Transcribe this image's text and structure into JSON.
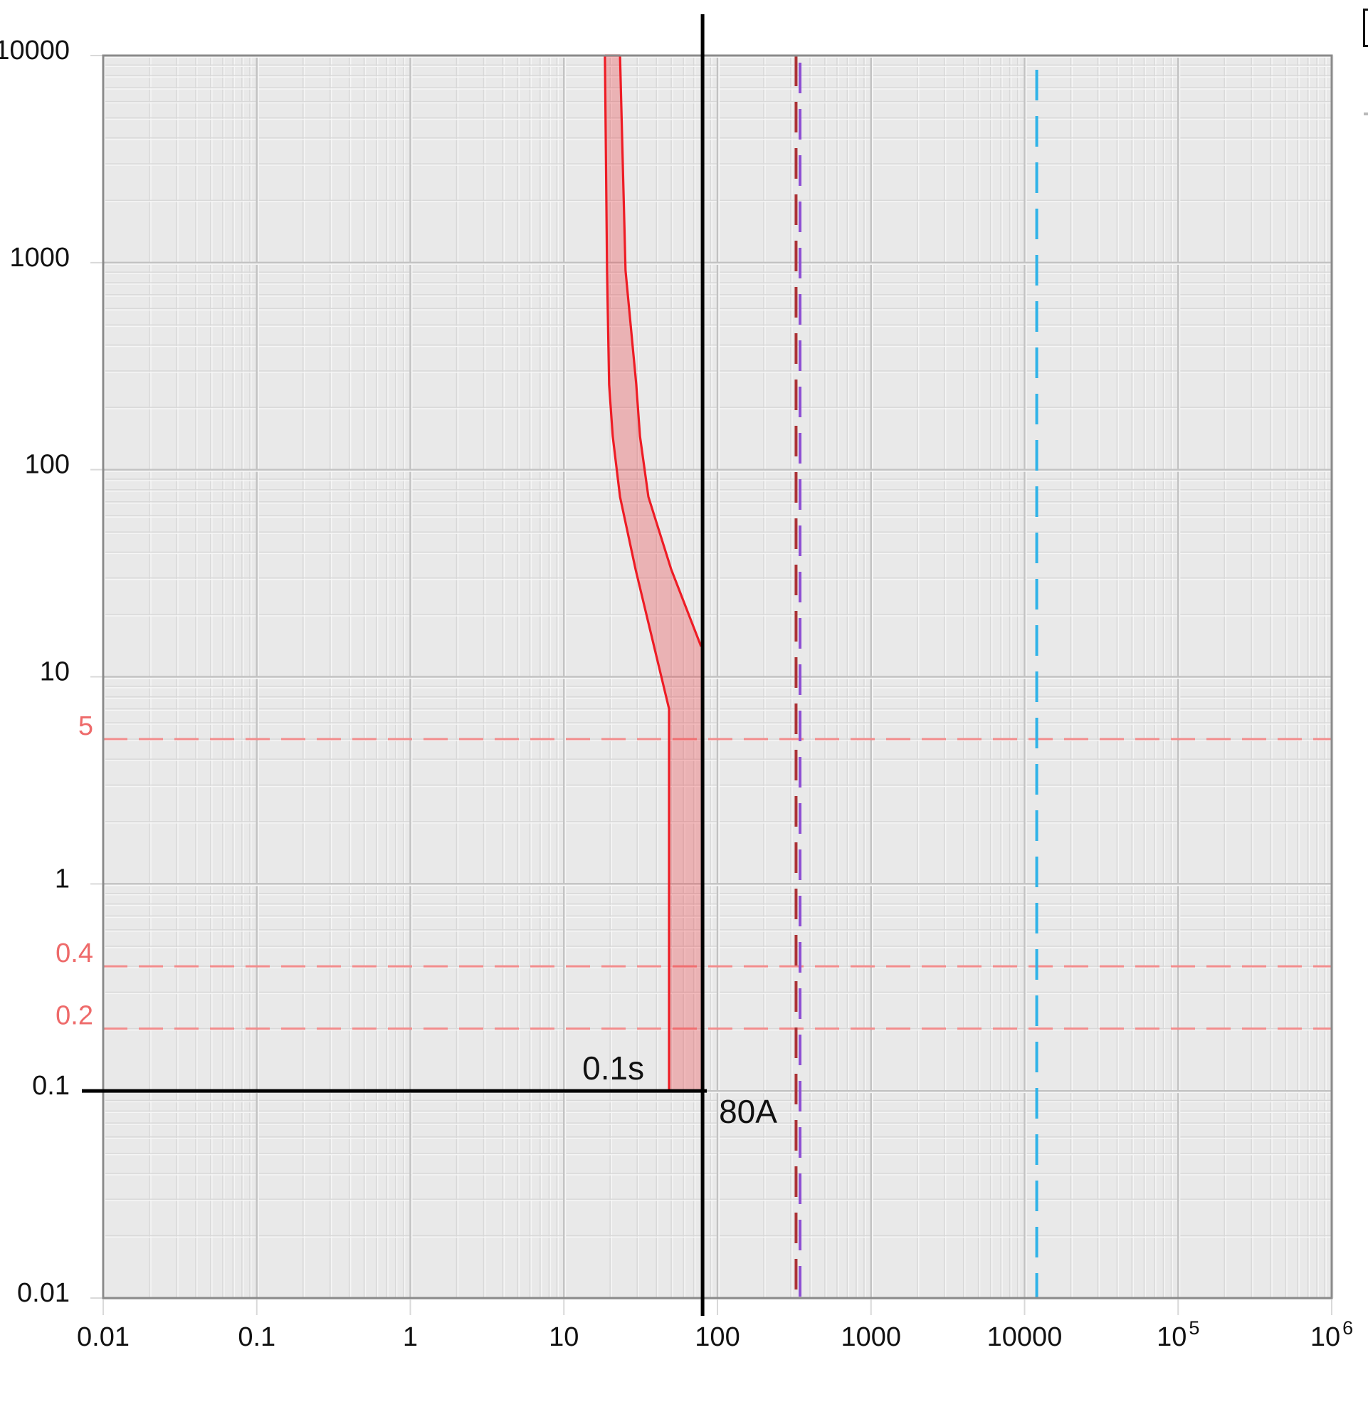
{
  "annotations": {
    "time_label": "0.1s",
    "current_label": "80A"
  },
  "legend_fragment": {
    "present": true
  },
  "chart_data": {
    "type": "area",
    "x_axis": {
      "scale": "log",
      "min": 0.01,
      "max": 1000000,
      "ticks": [
        {
          "v": 0.01,
          "label": "0.01"
        },
        {
          "v": 0.1,
          "label": "0.1"
        },
        {
          "v": 1,
          "label": "1"
        },
        {
          "v": 10,
          "label": "10"
        },
        {
          "v": 100,
          "label": "100"
        },
        {
          "v": 1000,
          "label": "1000"
        },
        {
          "v": 10000,
          "label": "10000"
        },
        {
          "v": 100000,
          "label": "10",
          "sup": "5"
        },
        {
          "v": 1000000,
          "label": "10",
          "sup": "6"
        }
      ]
    },
    "y_axis": {
      "scale": "log",
      "min": 0.01,
      "max": 10000,
      "ticks": [
        {
          "v": 10000,
          "label": "10000"
        },
        {
          "v": 1000,
          "label": "1000"
        },
        {
          "v": 100,
          "label": "100"
        },
        {
          "v": 10,
          "label": "10"
        },
        {
          "v": 1,
          "label": "1"
        },
        {
          "v": 0.1,
          "label": "0.1"
        },
        {
          "v": 0.01,
          "label": "0.01"
        }
      ]
    },
    "red_time_lines": {
      "values": [
        5,
        0.4,
        0.2
      ],
      "labels": [
        "5",
        "0.4",
        "0.2"
      ],
      "line_color": "#f28c8c",
      "label_color": "#ee6a6a"
    },
    "black_time_line": {
      "value": 0.1,
      "label": "0.1s"
    },
    "black_current_line": {
      "value": 80,
      "label": "80A"
    },
    "vertical_dashed_lines": [
      {
        "value": 325,
        "color": "#ab3236"
      },
      {
        "value": 345,
        "color": "#8d4fd3"
      },
      {
        "value": 12000,
        "color": "#2fb3e8"
      }
    ],
    "trip_band": {
      "stroke": "#ee1c25",
      "fill": "#ee1c25",
      "fill_opacity": 0.27,
      "lower_curve": [
        [
          18.5,
          10000
        ],
        [
          19.1,
          916
        ],
        [
          19.7,
          258
        ],
        [
          20.8,
          145
        ],
        [
          23.2,
          74
        ],
        [
          29.3,
          33
        ],
        [
          48.4,
          7
        ],
        [
          48.4,
          0.1
        ]
      ],
      "upper_curve": [
        [
          23.2,
          10000
        ],
        [
          25.2,
          916
        ],
        [
          29.6,
          258
        ],
        [
          31.3,
          145
        ],
        [
          35.5,
          74
        ],
        [
          50,
          33
        ],
        [
          78.3,
          14
        ],
        [
          78.3,
          0.1
        ]
      ]
    },
    "grid": {
      "bg": "#e9e9e9",
      "minor": "#d8d8d8",
      "major": "#c2c2c2",
      "border": "#8a8a8a",
      "highlight": "#f6f6f6",
      "text_color": "#111111"
    }
  }
}
